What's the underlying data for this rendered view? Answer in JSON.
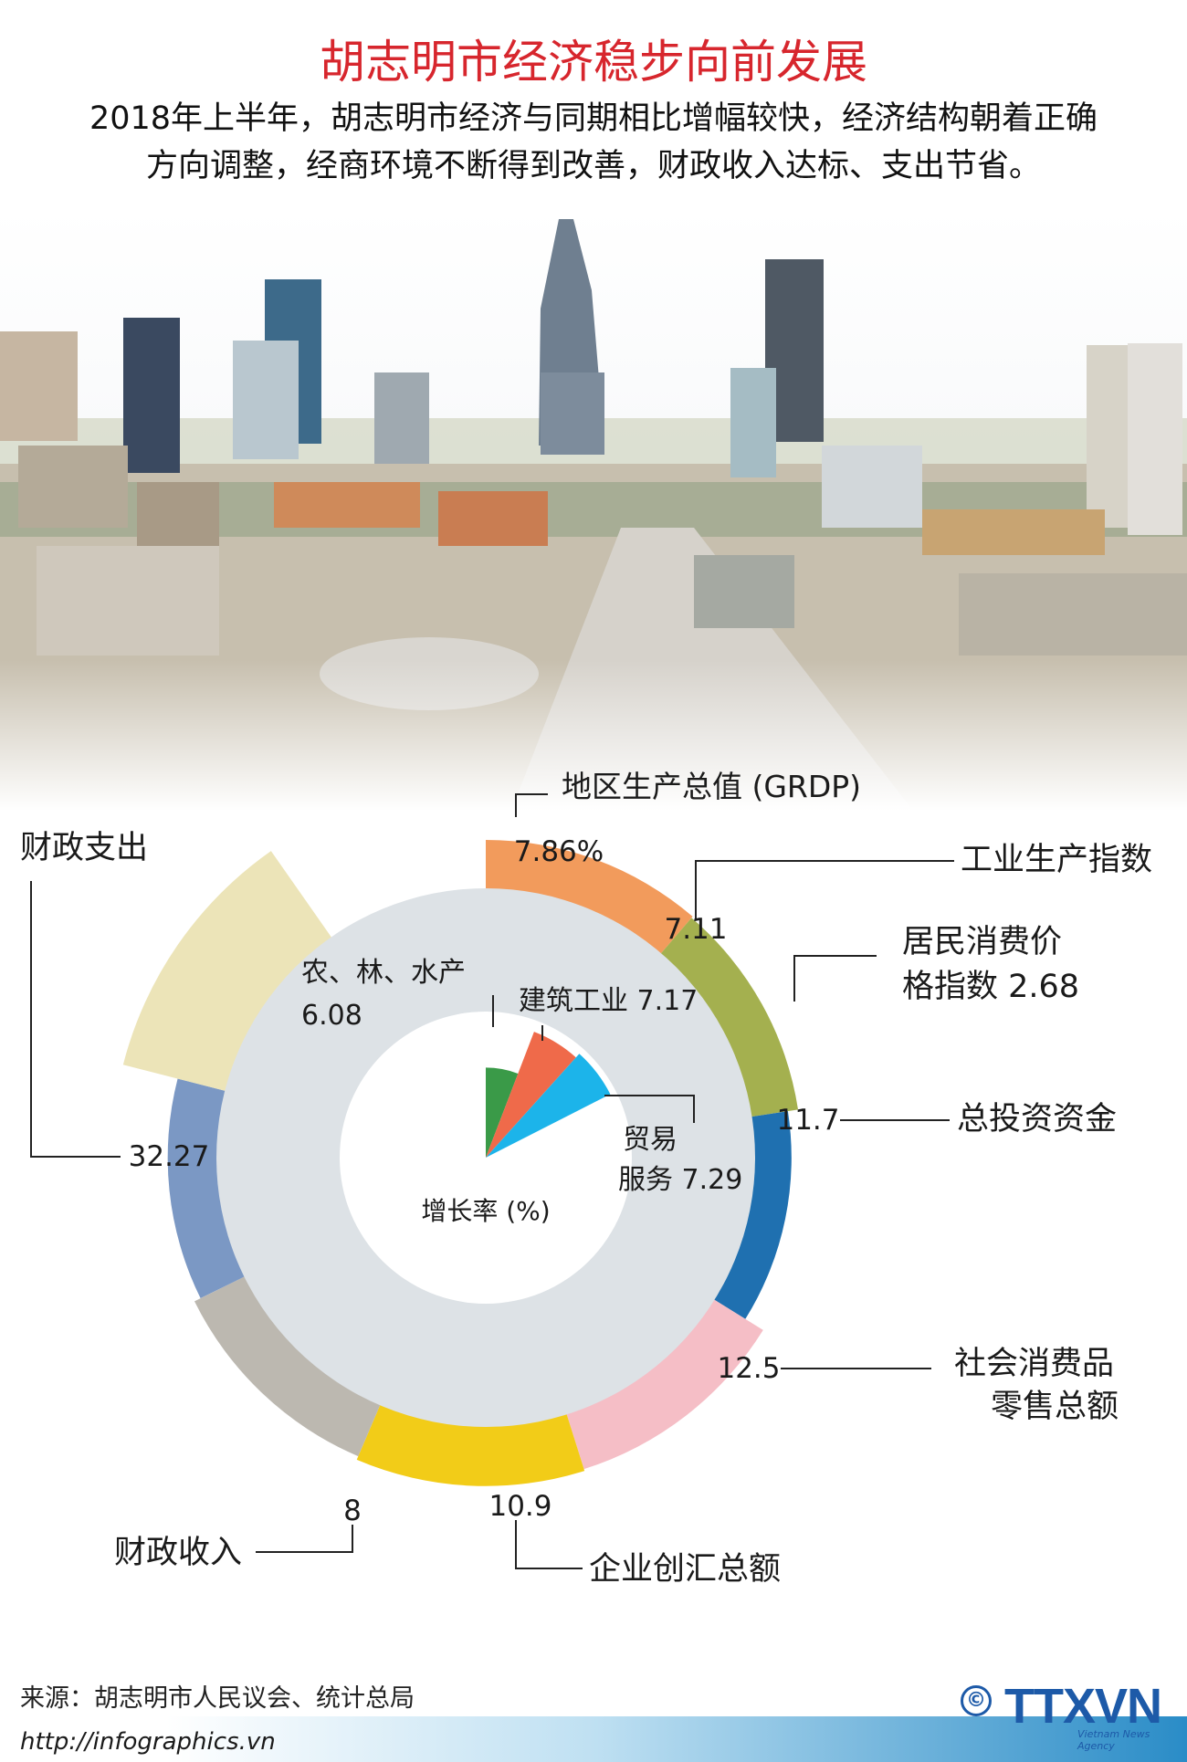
{
  "header": {
    "title": "胡志明市经济稳步向前发展",
    "subtitle_line1": "2018年上半年，胡志明市经济与同期相比增幅较快，经济结构朝着正确",
    "subtitle_line2": "方向调整，经商环境不断得到改善，财政收入达标、支出节省。"
  },
  "chart_data": {
    "type": "pie",
    "center_label": "增长率 (%)",
    "outer_ring": [
      {
        "name": "地区生产总值 (GRDP)",
        "value": 7.86,
        "label": "7.86%",
        "color": "#f29b5c"
      },
      {
        "name": "工业生产指数",
        "value": 7.11,
        "label": "7.11",
        "color": "#a4b04f"
      },
      {
        "name": "居民消费价格指数",
        "value": 2.68,
        "label": "2.68",
        "color": "#1f70b0"
      },
      {
        "name": "总投资资金",
        "value": 11.7,
        "label": "11.7",
        "color": "#f5bec6"
      },
      {
        "name": "社会消费品零售总额",
        "value": 12.5,
        "label": "12.5",
        "color": "#f2cc18"
      },
      {
        "name": "企业创汇总额",
        "value": 10.9,
        "label": "10.9",
        "color": "#bcb8b0"
      },
      {
        "name": "财政收入",
        "value": 8,
        "label": "8",
        "color": "#7b98c4"
      },
      {
        "name": "财政支出",
        "value": 32.27,
        "label": "32.27",
        "color": "#ece4b8"
      }
    ],
    "inner_pie": [
      {
        "name": "农、林、水产",
        "value": 6.08,
        "label": "6.08",
        "color": "#3a9a48"
      },
      {
        "name": "建筑工业",
        "value": 7.17,
        "label": "7.17",
        "color": "#ef6a4a"
      },
      {
        "name": "贸易服务",
        "value": 7.29,
        "label": "7.29",
        "color": "#1cb4ea"
      }
    ],
    "labels_text": {
      "grdp": "地区生产总值 (GRDP)",
      "industry": "工业生产指数",
      "cpi_line1": "居民消费价",
      "cpi_line2": "格指数 2.68",
      "invest": "总投资资金",
      "retail_line1": "社会消费品",
      "retail_line2": "零售总额",
      "export": "企业创汇总额",
      "revenue": "财政收入",
      "spending": "财政支出",
      "agri_line1": "农、林、水产",
      "agri_line2": "6.08",
      "construction": "建筑工业 7.17",
      "trade_line1": "贸易",
      "trade_line2": "服务 7.29"
    }
  },
  "footer": {
    "source": "来源：胡志明市人民议会、统计总局",
    "url": "http://infographics.vn",
    "copyright": "©",
    "logo": "TTXVN",
    "logo_sub": "Vietnam News Agency"
  }
}
